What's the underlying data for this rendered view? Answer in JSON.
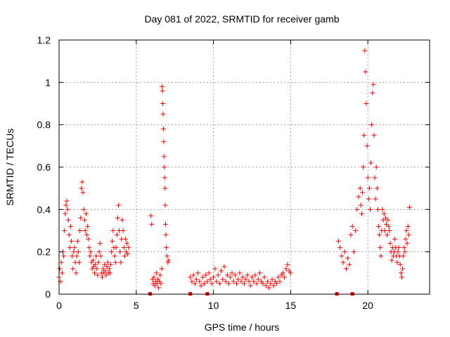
{
  "chart_data": {
    "type": "scatter",
    "title": "Day 081 of 2022, SRMTID for receiver gamb",
    "xlabel": "GPS time / hours",
    "ylabel": "SRMTID / TECUs",
    "xlim": [
      0,
      24
    ],
    "ylim": [
      0,
      1.2
    ],
    "xticks": [
      0,
      5,
      10,
      15,
      20
    ],
    "xtick_labels": [
      "0",
      "5",
      "10",
      "15",
      "20"
    ],
    "yticks": [
      0,
      0.2,
      0.4,
      0.6,
      0.8,
      1.0,
      1.2
    ],
    "ytick_labels": [
      "0",
      "0.2",
      "0.4",
      "0.6",
      "0.8",
      "1",
      "1.2"
    ],
    "grid": true,
    "marker": "+",
    "color": "#ff0000",
    "series": [
      {
        "name": "SRMTID",
        "points": [
          [
            0.0,
            0.08
          ],
          [
            0.05,
            0.12
          ],
          [
            0.1,
            0.06
          ],
          [
            0.15,
            0.15
          ],
          [
            0.2,
            0.1
          ],
          [
            0.25,
            0.2
          ],
          [
            0.3,
            0.18
          ],
          [
            0.35,
            0.3
          ],
          [
            0.4,
            0.38
          ],
          [
            0.45,
            0.42
          ],
          [
            0.5,
            0.44
          ],
          [
            0.55,
            0.4
          ],
          [
            0.6,
            0.35
          ],
          [
            0.65,
            0.28
          ],
          [
            0.7,
            0.22
          ],
          [
            0.75,
            0.32
          ],
          [
            0.8,
            0.25
          ],
          [
            0.85,
            0.18
          ],
          [
            0.9,
            0.12
          ],
          [
            0.95,
            0.2
          ],
          [
            1.0,
            0.22
          ],
          [
            1.05,
            0.15
          ],
          [
            1.1,
            0.1
          ],
          [
            1.15,
            0.18
          ],
          [
            1.2,
            0.25
          ],
          [
            1.25,
            0.2
          ],
          [
            1.3,
            0.15
          ],
          [
            1.35,
            0.3
          ],
          [
            1.4,
            0.36
          ],
          [
            1.45,
            0.5
          ],
          [
            1.5,
            0.53
          ],
          [
            1.55,
            0.48
          ],
          [
            1.6,
            0.4
          ],
          [
            1.65,
            0.35
          ],
          [
            1.7,
            0.3
          ],
          [
            1.75,
            0.38
          ],
          [
            1.8,
            0.28
          ],
          [
            1.85,
            0.32
          ],
          [
            1.9,
            0.26
          ],
          [
            1.95,
            0.22
          ],
          [
            2.0,
            0.18
          ],
          [
            2.05,
            0.2
          ],
          [
            2.1,
            0.15
          ],
          [
            2.15,
            0.12
          ],
          [
            2.2,
            0.16
          ],
          [
            2.25,
            0.13
          ],
          [
            2.3,
            0.1
          ],
          [
            2.35,
            0.14
          ],
          [
            2.4,
            0.18
          ],
          [
            2.45,
            0.12
          ],
          [
            2.5,
            0.09
          ],
          [
            2.55,
            0.15
          ],
          [
            2.6,
            0.2
          ],
          [
            2.65,
            0.24
          ],
          [
            2.7,
            0.18
          ],
          [
            2.75,
            0.1
          ],
          [
            2.8,
            0.08
          ],
          [
            2.85,
            0.12
          ],
          [
            2.9,
            0.1
          ],
          [
            2.95,
            0.14
          ],
          [
            3.0,
            0.11
          ],
          [
            3.05,
            0.09
          ],
          [
            3.1,
            0.13
          ],
          [
            3.15,
            0.15
          ],
          [
            3.2,
            0.1
          ],
          [
            3.25,
            0.12
          ],
          [
            3.3,
            0.1
          ],
          [
            3.35,
            0.14
          ],
          [
            3.4,
            0.2
          ],
          [
            3.45,
            0.25
          ],
          [
            3.5,
            0.3
          ],
          [
            3.55,
            0.22
          ],
          [
            3.6,
            0.18
          ],
          [
            3.65,
            0.15
          ],
          [
            3.7,
            0.22
          ],
          [
            3.75,
            0.28
          ],
          [
            3.8,
            0.36
          ],
          [
            3.85,
            0.42
          ],
          [
            3.9,
            0.3
          ],
          [
            3.95,
            0.2
          ],
          [
            4.0,
            0.15
          ],
          [
            4.05,
            0.26
          ],
          [
            4.1,
            0.35
          ],
          [
            4.15,
            0.3
          ],
          [
            4.2,
            0.22
          ],
          [
            4.25,
            0.18
          ],
          [
            4.3,
            0.26
          ],
          [
            4.35,
            0.2
          ],
          [
            4.4,
            0.24
          ],
          [
            4.45,
            0.19
          ],
          [
            4.5,
            0.22
          ],
          [
            5.95,
            0.37
          ],
          [
            6.0,
            0.33
          ],
          [
            6.05,
            0.07
          ],
          [
            6.1,
            0.05
          ],
          [
            6.15,
            0.08
          ],
          [
            6.2,
            0.04
          ],
          [
            6.25,
            0.06
          ],
          [
            6.3,
            0.1
          ],
          [
            6.35,
            0.05
          ],
          [
            6.4,
            0.07
          ],
          [
            6.45,
            0.03
          ],
          [
            6.5,
            0.06
          ],
          [
            6.55,
            0.09
          ],
          [
            6.6,
            0.05
          ],
          [
            6.65,
            0.12
          ],
          [
            6.68,
            0.98
          ],
          [
            6.7,
            0.96
          ],
          [
            6.72,
            0.9
          ],
          [
            6.74,
            0.85
          ],
          [
            6.76,
            0.78
          ],
          [
            6.78,
            0.72
          ],
          [
            6.8,
            0.65
          ],
          [
            6.82,
            0.6
          ],
          [
            6.84,
            0.55
          ],
          [
            6.86,
            0.5
          ],
          [
            6.88,
            0.42
          ],
          [
            6.9,
            0.33
          ],
          [
            6.92,
            0.28
          ],
          [
            6.95,
            0.22
          ],
          [
            7.0,
            0.18
          ],
          [
            7.05,
            0.15
          ],
          [
            7.1,
            0.16
          ],
          [
            8.5,
            0.08
          ],
          [
            8.6,
            0.06
          ],
          [
            8.7,
            0.09
          ],
          [
            8.8,
            0.05
          ],
          [
            8.9,
            0.07
          ],
          [
            9.0,
            0.1
          ],
          [
            9.1,
            0.06
          ],
          [
            9.2,
            0.04
          ],
          [
            9.3,
            0.08
          ],
          [
            9.4,
            0.05
          ],
          [
            9.5,
            0.09
          ],
          [
            9.6,
            0.06
          ],
          [
            9.7,
            0.1
          ],
          [
            9.8,
            0.07
          ],
          [
            9.9,
            0.05
          ],
          [
            10.0,
            0.08
          ],
          [
            10.1,
            0.12
          ],
          [
            10.2,
            0.06
          ],
          [
            10.3,
            0.09
          ],
          [
            10.4,
            0.05
          ],
          [
            10.5,
            0.11
          ],
          [
            10.6,
            0.07
          ],
          [
            10.7,
            0.13
          ],
          [
            10.8,
            0.06
          ],
          [
            10.9,
            0.09
          ],
          [
            11.0,
            0.05
          ],
          [
            11.1,
            0.08
          ],
          [
            11.2,
            0.1
          ],
          [
            11.3,
            0.06
          ],
          [
            11.4,
            0.09
          ],
          [
            11.5,
            0.05
          ],
          [
            11.6,
            0.07
          ],
          [
            11.7,
            0.1
          ],
          [
            11.8,
            0.06
          ],
          [
            11.9,
            0.08
          ],
          [
            12.0,
            0.05
          ],
          [
            12.1,
            0.07
          ],
          [
            12.2,
            0.09
          ],
          [
            12.3,
            0.06
          ],
          [
            12.4,
            0.04
          ],
          [
            12.5,
            0.08
          ],
          [
            12.6,
            0.06
          ],
          [
            12.7,
            0.09
          ],
          [
            12.8,
            0.05
          ],
          [
            12.9,
            0.07
          ],
          [
            13.0,
            0.1
          ],
          [
            13.1,
            0.06
          ],
          [
            13.2,
            0.05
          ],
          [
            13.3,
            0.08
          ],
          [
            13.4,
            0.04
          ],
          [
            13.5,
            0.06
          ],
          [
            13.6,
            0.03
          ],
          [
            13.7,
            0.05
          ],
          [
            13.8,
            0.07
          ],
          [
            13.9,
            0.04
          ],
          [
            14.0,
            0.06
          ],
          [
            14.1,
            0.05
          ],
          [
            14.2,
            0.08
          ],
          [
            14.3,
            0.06
          ],
          [
            14.4,
            0.09
          ],
          [
            14.5,
            0.1
          ],
          [
            14.6,
            0.08
          ],
          [
            14.7,
            0.12
          ],
          [
            14.8,
            0.14
          ],
          [
            14.9,
            0.11
          ],
          [
            15.0,
            0.1
          ],
          [
            18.1,
            0.25
          ],
          [
            18.2,
            0.22
          ],
          [
            18.3,
            0.18
          ],
          [
            18.4,
            0.15
          ],
          [
            18.5,
            0.2
          ],
          [
            18.6,
            0.12
          ],
          [
            18.7,
            0.17
          ],
          [
            18.8,
            0.14
          ],
          [
            18.9,
            0.28
          ],
          [
            19.0,
            0.32
          ],
          [
            19.1,
            0.2
          ],
          [
            19.2,
            0.3
          ],
          [
            19.3,
            0.4
          ],
          [
            19.4,
            0.46
          ],
          [
            19.5,
            0.5
          ],
          [
            19.55,
            0.42
          ],
          [
            19.6,
            0.38
          ],
          [
            19.65,
            0.48
          ],
          [
            19.7,
            0.6
          ],
          [
            19.75,
            0.75
          ],
          [
            19.8,
            1.15
          ],
          [
            19.85,
            1.05
          ],
          [
            19.9,
            0.9
          ],
          [
            19.95,
            0.7
          ],
          [
            20.0,
            0.55
          ],
          [
            20.05,
            0.45
          ],
          [
            20.1,
            0.5
          ],
          [
            20.15,
            0.4
          ],
          [
            20.2,
            0.62
          ],
          [
            20.25,
            0.8
          ],
          [
            20.3,
            0.95
          ],
          [
            20.35,
            0.99
          ],
          [
            20.4,
            0.75
          ],
          [
            20.45,
            0.55
          ],
          [
            20.5,
            0.45
          ],
          [
            20.55,
            0.6
          ],
          [
            20.6,
            0.5
          ],
          [
            20.65,
            0.4
          ],
          [
            20.7,
            0.32
          ],
          [
            20.75,
            0.28
          ],
          [
            20.8,
            0.22
          ],
          [
            20.85,
            0.18
          ],
          [
            20.9,
            0.3
          ],
          [
            20.95,
            0.4
          ],
          [
            21.0,
            0.35
          ],
          [
            21.05,
            0.38
          ],
          [
            21.1,
            0.3
          ],
          [
            21.15,
            0.36
          ],
          [
            21.2,
            0.33
          ],
          [
            21.25,
            0.28
          ],
          [
            21.3,
            0.35
          ],
          [
            21.35,
            0.32
          ],
          [
            21.4,
            0.3
          ],
          [
            21.45,
            0.24
          ],
          [
            21.5,
            0.2
          ],
          [
            21.55,
            0.16
          ],
          [
            21.6,
            0.22
          ],
          [
            21.65,
            0.18
          ],
          [
            21.7,
            0.2
          ],
          [
            21.75,
            0.26
          ],
          [
            21.8,
            0.22
          ],
          [
            21.85,
            0.18
          ],
          [
            21.9,
            0.15
          ],
          [
            21.95,
            0.2
          ],
          [
            22.0,
            0.22
          ],
          [
            22.05,
            0.18
          ],
          [
            22.1,
            0.14
          ],
          [
            22.15,
            0.1
          ],
          [
            22.2,
            0.08
          ],
          [
            22.25,
            0.12
          ],
          [
            22.3,
            0.18
          ],
          [
            22.35,
            0.22
          ],
          [
            22.4,
            0.2
          ],
          [
            22.45,
            0.26
          ],
          [
            22.5,
            0.3
          ],
          [
            22.55,
            0.24
          ],
          [
            22.6,
            0.32
          ],
          [
            22.65,
            0.28
          ],
          [
            22.7,
            0.41
          ]
        ]
      }
    ],
    "zero_markers_x": [
      5.9,
      8.5,
      9.6,
      18.0,
      19.0
    ]
  }
}
